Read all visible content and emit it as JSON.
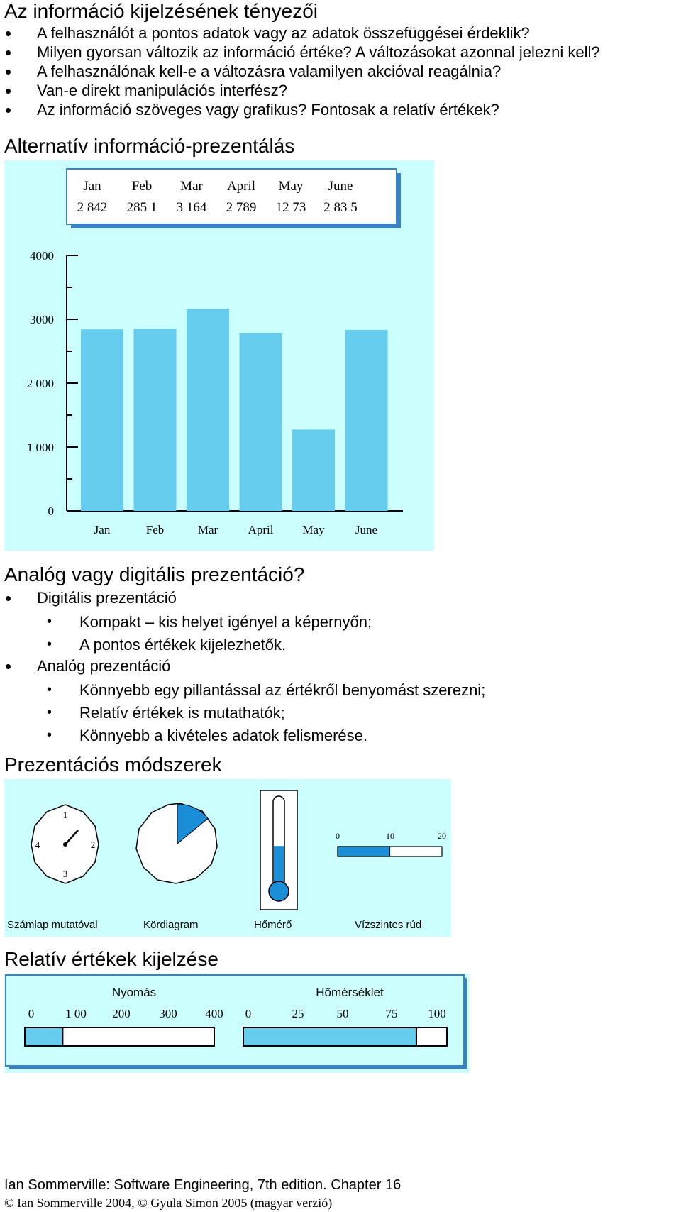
{
  "section1": {
    "title": "Az információ kijelzésének tényezői",
    "bullets": [
      "A felhasználót a pontos adatok vagy az adatok összefüggései érdeklik?",
      "Milyen gyorsan változik az információ értéke? A változásokat azonnal jelezni kell?",
      "A felhasználónak kell-e a változásra valamilyen akcióval reagálnia?",
      "Van-e direkt manipulációs interfész?",
      "Az információ szöveges vagy grafikus? Fontosak a relatív értékek?"
    ]
  },
  "section2": {
    "title": "Alternatív információ-prezentálás"
  },
  "chart_data": [
    {
      "type": "table",
      "categories": [
        "Jan",
        "Feb",
        "Mar",
        "April",
        "May",
        "June"
      ],
      "values_text": [
        "2 842",
        "285 1",
        "3 164",
        "2 789",
        "12 73",
        "2 83 5"
      ]
    },
    {
      "type": "bar",
      "categories": [
        "Jan",
        "Feb",
        "Mar",
        "April",
        "May",
        "June"
      ],
      "values": [
        2842,
        2851,
        3164,
        2789,
        1273,
        2835
      ],
      "ylim": [
        0,
        4000
      ],
      "yticks": [
        0,
        1000,
        2000,
        3000,
        4000
      ],
      "ytick_labels": [
        "0",
        "1 000",
        "2 000",
        "3000",
        "4000"
      ],
      "grid": false,
      "colors": {
        "bar": "#66ccee",
        "background": "#ccffff"
      }
    }
  ],
  "section3": {
    "title": "Analóg vagy digitális prezentáció?",
    "digital": {
      "label": "Digitális prezentáció",
      "items": [
        "Kompakt – kis helyet igényel a képernyőn;",
        "A pontos értékek kijelezhetők."
      ]
    },
    "analog": {
      "label": "Analóg prezentáció",
      "items": [
        "Könnyebb egy pillantással az értékről benyomást szerezni;",
        "Relatív értékek is mutathatók;",
        "Könnyebb a kivételes adatok felismerése."
      ]
    }
  },
  "section4": {
    "title": "Prezentációs módszerek",
    "dial": {
      "caption": "Számlap mutatóval",
      "numbers": [
        "1",
        "2",
        "3",
        "4"
      ]
    },
    "pie": {
      "caption": "Kördiagram",
      "fraction": 0.14
    },
    "thermo": {
      "caption": "Hőmérő",
      "fraction": 0.45
    },
    "hbar": {
      "caption": "Vízszintes rúd",
      "ticks": [
        "0",
        "10",
        "20"
      ],
      "value": 10,
      "max": 20
    },
    "colors": {
      "accent": "#1a8fd8",
      "background": "#ccffff"
    }
  },
  "section5": {
    "title": "Relatív értékek kijelzése",
    "pressure": {
      "label": "Nyomás",
      "ticks": [
        "0",
        "1 00",
        "200",
        "300",
        "400"
      ],
      "value": 80,
      "max": 400
    },
    "temperature": {
      "label": "Hőmérséklet",
      "ticks": [
        "0",
        "25",
        "50",
        "75",
        "100"
      ],
      "value": 85,
      "max": 100
    }
  },
  "footer": {
    "line1": "Ian Sommerville: Software Engineering, 7th edition. Chapter 16",
    "line2": "© Ian Sommerville 2004, © Gyula Simon 2005 (magyar verzió)"
  }
}
